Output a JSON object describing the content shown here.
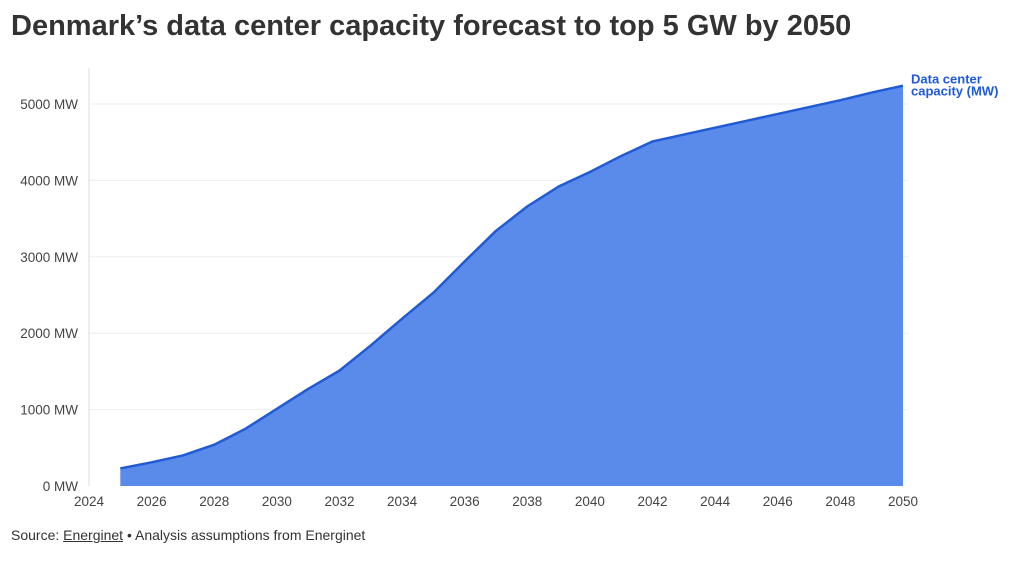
{
  "chart_data": {
    "type": "area",
    "title": "Denmark’s data center capacity forecast to top 5 GW by 2050",
    "xlabel": "",
    "ylabel": "",
    "x": [
      2025,
      2026,
      2027,
      2028,
      2029,
      2030,
      2031,
      2032,
      2033,
      2034,
      2035,
      2036,
      2037,
      2038,
      2039,
      2040,
      2041,
      2042,
      2043,
      2044,
      2045,
      2046,
      2047,
      2048,
      2049,
      2050
    ],
    "series": [
      {
        "name": "Data center capacity (MW)",
        "name_lines": [
          "Data center",
          "capacity (MW)"
        ],
        "values": [
          230,
          310,
          400,
          540,
          750,
          1010,
          1270,
          1510,
          1840,
          2190,
          2530,
          2940,
          3340,
          3660,
          3920,
          4110,
          4320,
          4510,
          4600,
          4690,
          4780,
          4870,
          4960,
          5050,
          5150,
          5240
        ]
      }
    ],
    "xlim": [
      2024,
      2050
    ],
    "ylim": [
      0,
      5000
    ],
    "x_ticks": [
      2024,
      2026,
      2028,
      2030,
      2032,
      2034,
      2036,
      2038,
      2040,
      2042,
      2044,
      2046,
      2048,
      2050
    ],
    "y_ticks": [
      0,
      1000,
      2000,
      3000,
      4000,
      5000
    ],
    "y_tick_suffix": " MW",
    "grid": true,
    "legend": "label at end of line",
    "colors": {
      "fill": "#5a8aea",
      "line": "#1f5bd6",
      "grid": "#eeeeee",
      "axis": "#dddddd"
    }
  },
  "footer": {
    "prefix": "Source: ",
    "source_link": "Energinet",
    "suffix": " • Analysis assumptions from Energinet"
  }
}
